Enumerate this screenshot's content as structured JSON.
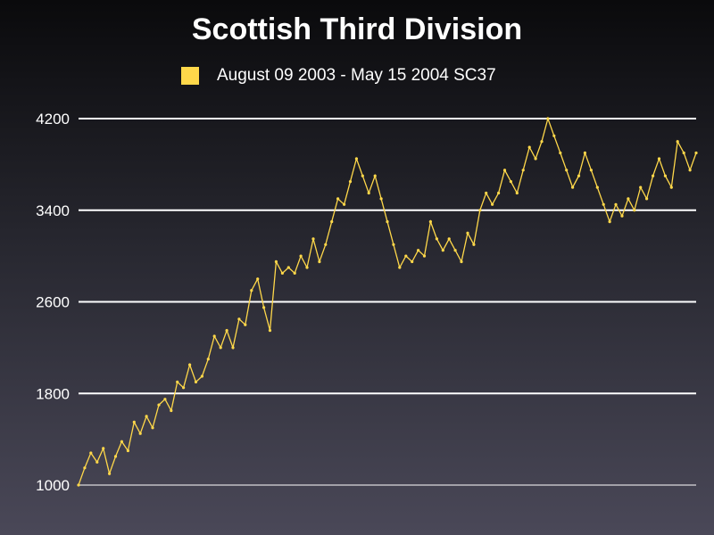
{
  "chart_data": {
    "type": "line",
    "title": "Scottish Third Division",
    "series": [
      {
        "name": "August 09 2003  - May 15 2004 SC37",
        "color": "#ffd84a",
        "values": [
          1000,
          1150,
          1280,
          1200,
          1320,
          1100,
          1250,
          1380,
          1300,
          1550,
          1450,
          1600,
          1500,
          1700,
          1750,
          1650,
          1900,
          1850,
          2050,
          1900,
          1950,
          2100,
          2300,
          2200,
          2350,
          2200,
          2450,
          2400,
          2700,
          2800,
          2550,
          2350,
          2950,
          2850,
          2900,
          2850,
          3000,
          2900,
          3150,
          2950,
          3100,
          3300,
          3500,
          3450,
          3650,
          3850,
          3700,
          3550,
          3700,
          3500,
          3300,
          3100,
          2900,
          3000,
          2950,
          3050,
          3000,
          3300,
          3150,
          3050,
          3150,
          3050,
          2950,
          3200,
          3100,
          3400,
          3550,
          3450,
          3550,
          3750,
          3650,
          3550,
          3750,
          3950,
          3850,
          4000,
          4200,
          4050,
          3900,
          3750,
          3600,
          3700,
          3900,
          3750,
          3600,
          3450,
          3300,
          3450,
          3350,
          3500,
          3400,
          3600,
          3500,
          3700,
          3850,
          3700,
          3600,
          4000,
          3900,
          3750,
          3900
        ]
      }
    ],
    "ylim": [
      1000,
      4200
    ],
    "yticks": [
      4200,
      3400,
      2600,
      1800,
      1000
    ],
    "grid": true,
    "legend_position": "top-center"
  }
}
